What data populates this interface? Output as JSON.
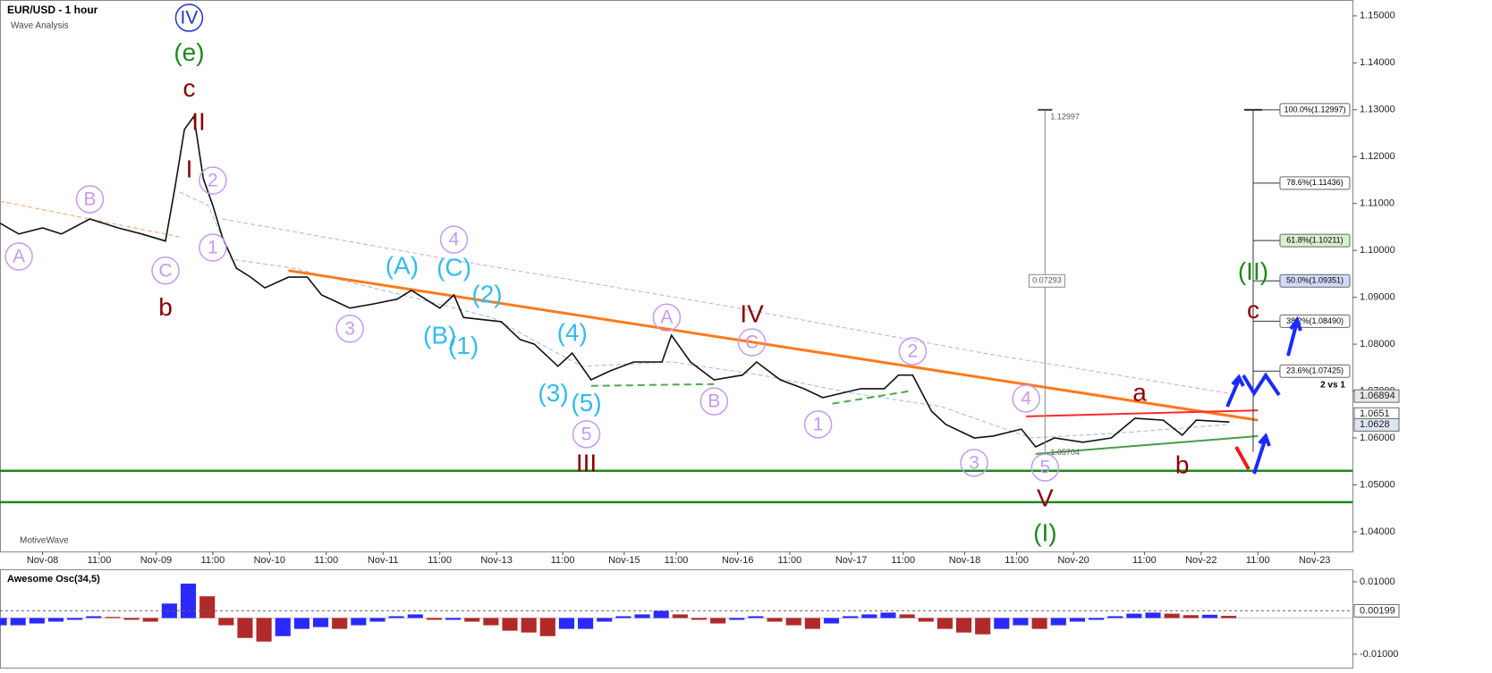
{
  "chart_data": {
    "type": "line",
    "title": "EUR/USD - 1 hour",
    "subtitle": "Wave Analysis",
    "watermark": "MotiveWave",
    "color": "#111111",
    "x": [
      0,
      4,
      9,
      13,
      19,
      25,
      30,
      35,
      37,
      39,
      41,
      43,
      45,
      47,
      50,
      53,
      56,
      61,
      65,
      68,
      74,
      79,
      84,
      87,
      93,
      96,
      98,
      106,
      110,
      113,
      118,
      121,
      125,
      129,
      134,
      140,
      142,
      146,
      151,
      157,
      160,
      165,
      170,
      174,
      182,
      187,
      190,
      193,
      197,
      200,
      206,
      210,
      216,
      219,
      223,
      229,
      235,
      240,
      246,
      250,
      253,
      260
    ],
    "values": [
      1.1058,
      1.1035,
      1.1048,
      1.1035,
      1.1067,
      1.1048,
      1.1035,
      1.102,
      1.1134,
      1.1258,
      1.1286,
      1.1153,
      1.1096,
      1.1029,
      1.0962,
      1.0943,
      1.092,
      1.0943,
      1.0943,
      1.0905,
      1.0877,
      1.0886,
      1.0896,
      1.0915,
      1.0877,
      1.0905,
      1.0857,
      1.0848,
      1.081,
      1.08,
      1.0753,
      1.0781,
      1.0724,
      1.0743,
      1.0762,
      1.0762,
      1.0819,
      1.0762,
      1.0724,
      1.0734,
      1.0762,
      1.0724,
      1.0705,
      1.0686,
      1.0705,
      1.0705,
      1.0734,
      1.0734,
      1.0657,
      1.0629,
      1.06,
      1.0604,
      1.0619,
      1.0581,
      1.06,
      1.0591,
      1.06,
      1.0642,
      1.0638,
      1.0606,
      1.0638,
      1.0634
    ],
    "xlim": [
      0,
      286
    ],
    "ylim": [
      1.0358,
      1.1534
    ],
    "yticks": [
      {
        "value": 1.04,
        "label": "1.04000"
      },
      {
        "value": 1.05,
        "label": "1.05000"
      },
      {
        "value": 1.06,
        "label": "1.06000"
      },
      {
        "value": 1.07,
        "label": "1.07000"
      },
      {
        "value": 1.08,
        "label": "1.08000"
      },
      {
        "value": 1.09,
        "label": "1.09000"
      },
      {
        "value": 1.1,
        "label": "1.10000"
      },
      {
        "value": 1.11,
        "label": "1.11000"
      },
      {
        "value": 1.12,
        "label": "1.12000"
      },
      {
        "value": 1.13,
        "label": "1.13000"
      },
      {
        "value": 1.14,
        "label": "1.14000"
      },
      {
        "value": 1.15,
        "label": "1.15000"
      }
    ],
    "xticks": [
      {
        "value": 9,
        "label": "Nov-08"
      },
      {
        "value": 21,
        "label": "11:00"
      },
      {
        "value": 33,
        "label": "Nov-09"
      },
      {
        "value": 45,
        "label": "11:00"
      },
      {
        "value": 57,
        "label": "Nov-10"
      },
      {
        "value": 69,
        "label": "11:00"
      },
      {
        "value": 81,
        "label": "Nov-11"
      },
      {
        "value": 93,
        "label": "11:00"
      },
      {
        "value": 105,
        "label": "Nov-13"
      },
      {
        "value": 119,
        "label": "11:00"
      },
      {
        "value": 132,
        "label": "Nov-15"
      },
      {
        "value": 143,
        "label": "11:00"
      },
      {
        "value": 156,
        "label": "Nov-16"
      },
      {
        "value": 167,
        "label": "11:00"
      },
      {
        "value": 180,
        "label": "Nov-17"
      },
      {
        "value": 191,
        "label": "11:00"
      },
      {
        "value": 204,
        "label": "Nov-18"
      },
      {
        "value": 215,
        "label": "11:00"
      },
      {
        "value": 227,
        "label": "Nov-20"
      },
      {
        "value": 242,
        "label": "11:00"
      },
      {
        "value": 254,
        "label": "Nov-22"
      },
      {
        "value": 266,
        "label": "11:00"
      },
      {
        "value": 278,
        "label": "Nov-23"
      }
    ],
    "averages": [
      {
        "color": "#f4a070",
        "x": [
          0,
          38
        ],
        "values": [
          1.1105,
          1.1029
        ]
      },
      {
        "color": "#d9a0e8",
        "x": [
          47,
          95,
          151,
          208,
          260
        ],
        "values": [
          1.1067,
          1.0981,
          1.0886,
          1.0781,
          1.0695
        ]
      },
      {
        "color": "#9ab8ee",
        "x": [
          38,
          44,
          49,
          62,
          85,
          104,
          123,
          142,
          161,
          180,
          199,
          218,
          236,
          260
        ],
        "values": [
          1.1124,
          1.1096,
          1.0981,
          1.0962,
          1.0905,
          1.0857,
          1.0753,
          1.0762,
          1.0734,
          1.0696,
          1.0667,
          1.06,
          1.061,
          1.0629
        ]
      }
    ],
    "trendlines": [
      {
        "color": "#ff7a1a",
        "x": [
          61,
          266
        ],
        "values": [
          1.0957,
          1.0638
        ]
      },
      {
        "color": "#ff2a2a",
        "x": [
          217,
          266
        ],
        "values": [
          1.0646,
          1.0659
        ]
      },
      {
        "color": "#4a9a4a",
        "x": [
          219,
          266
        ],
        "values": [
          1.0566,
          1.0604
        ]
      },
      {
        "color": "#4aaa4a",
        "x": [
          125,
          151
        ],
        "values": [
          1.0711,
          1.0715
        ]
      },
      {
        "color": "#4aaa4a",
        "x": [
          176,
          193
        ],
        "values": [
          1.0673,
          1.0701
        ]
      }
    ],
    "hlines": {
      "color": "#1a8a1a",
      "values": [
        1.053,
        1.0463
      ]
    },
    "price_labels": [
      {
        "value": 1.06894,
        "color": "#e8e8e8"
      },
      {
        "value": 1.0651,
        "color": "#ffffff"
      },
      {
        "value": 1.0628,
        "color": "#dde4f4"
      }
    ],
    "measure": {
      "x": 221,
      "top": 1.12997,
      "diff": 0.07293,
      "bottom": 1.05704
    },
    "fib": {
      "x": 265,
      "top": 1.12997,
      "bottom": 1.05704,
      "note": "2 vs 1",
      "levels": [
        {
          "value": 1.12997,
          "label": "100.0%(1.12997)",
          "color": "#ffffff"
        },
        {
          "value": 1.11436,
          "label": "78.6%(1.11436)",
          "color": "#ffffff"
        },
        {
          "value": 1.10211,
          "label": "61.8%(1.10211)",
          "color": "#d6f0cf"
        },
        {
          "value": 1.09351,
          "label": "50.0%(1.09351)",
          "color": "#d2daf8"
        },
        {
          "value": 1.0849,
          "label": "38.2%(1.08490)",
          "color": "#ffffff"
        },
        {
          "value": 1.07425,
          "label": "23.6%(1.07425)",
          "color": "#ffffff"
        }
      ]
    },
    "annotations": [
      {
        "text": "IV",
        "x": 40,
        "y": 1.1496,
        "color": "#2233cc",
        "circle": true
      },
      {
        "text": "(e)",
        "x": 40,
        "y": 1.142,
        "color": "#1a8a1a"
      },
      {
        "text": "c",
        "x": 40,
        "y": 1.1344,
        "color": "#8b0000"
      },
      {
        "text": "II",
        "x": 42,
        "y": 1.1273,
        "color": "#8b0000"
      },
      {
        "text": "I",
        "x": 40,
        "y": 1.1172,
        "color": "#8b0000"
      },
      {
        "text": "2",
        "x": 45,
        "y": 1.1149,
        "color": "#c69af0",
        "circle": true
      },
      {
        "text": "1",
        "x": 45,
        "y": 1.1006,
        "color": "#c69af0",
        "circle": true
      },
      {
        "text": "B",
        "x": 19,
        "y": 1.1109,
        "color": "#c69af0",
        "circle": true
      },
      {
        "text": "A",
        "x": 4,
        "y": 1.0987,
        "color": "#c69af0",
        "circle": true
      },
      {
        "text": "C",
        "x": 35,
        "y": 1.0957,
        "color": "#c69af0",
        "circle": true
      },
      {
        "text": "b",
        "x": 35,
        "y": 1.0877,
        "color": "#8b0000"
      },
      {
        "text": "4",
        "x": 96,
        "y": 1.1023,
        "color": "#c69af0",
        "circle": true
      },
      {
        "text": "(A)",
        "x": 85,
        "y": 1.0966,
        "color": "#33bbee"
      },
      {
        "text": "(C)",
        "x": 96,
        "y": 1.0962,
        "color": "#33bbee"
      },
      {
        "text": "(2)",
        "x": 103,
        "y": 1.0905,
        "color": "#33bbee"
      },
      {
        "text": "(B)",
        "x": 93,
        "y": 1.0817,
        "color": "#33bbee"
      },
      {
        "text": "(1)",
        "x": 98,
        "y": 1.0795,
        "color": "#33bbee"
      },
      {
        "text": "3",
        "x": 74,
        "y": 1.0833,
        "color": "#c69af0",
        "circle": true
      },
      {
        "text": "(4)",
        "x": 121,
        "y": 1.0823,
        "color": "#33bbee"
      },
      {
        "text": "(3)",
        "x": 117,
        "y": 1.0694,
        "color": "#33bbee"
      },
      {
        "text": "(5)",
        "x": 124,
        "y": 1.0673,
        "color": "#33bbee"
      },
      {
        "text": "5",
        "x": 124,
        "y": 1.0608,
        "color": "#c69af0",
        "circle": true
      },
      {
        "text": "III",
        "x": 124,
        "y": 1.0545,
        "color": "#8b0000"
      },
      {
        "text": "A",
        "x": 141,
        "y": 1.0857,
        "color": "#c69af0",
        "circle": true
      },
      {
        "text": "IV",
        "x": 159,
        "y": 1.0863,
        "color": "#8b0000"
      },
      {
        "text": "C",
        "x": 159,
        "y": 1.0804,
        "color": "#c69af0",
        "circle": true
      },
      {
        "text": "B",
        "x": 151,
        "y": 1.0678,
        "color": "#c69af0",
        "circle": true
      },
      {
        "text": "1",
        "x": 173,
        "y": 1.0629,
        "color": "#c69af0",
        "circle": true
      },
      {
        "text": "2",
        "x": 193,
        "y": 1.0785,
        "color": "#c69af0",
        "circle": true
      },
      {
        "text": "3",
        "x": 206,
        "y": 1.0547,
        "color": "#c69af0",
        "circle": true
      },
      {
        "text": "4",
        "x": 217,
        "y": 1.0684,
        "color": "#c69af0",
        "circle": true
      },
      {
        "text": "5",
        "x": 221,
        "y": 1.0537,
        "color": "#c69af0",
        "circle": true
      },
      {
        "text": "V",
        "x": 221,
        "y": 1.047,
        "color": "#8b0000"
      },
      {
        "text": "(I)",
        "x": 221,
        "y": 1.0396,
        "color": "#1a8a1a"
      },
      {
        "text": "a",
        "x": 241,
        "y": 1.0695,
        "color": "#8b0000"
      },
      {
        "text": "b",
        "x": 250,
        "y": 1.0541,
        "color": "#8b0000"
      },
      {
        "text": "(II)",
        "x": 265,
        "y": 1.0953,
        "color": "#1a8a1a"
      },
      {
        "text": "c",
        "x": 265,
        "y": 1.0871,
        "color": "#8b0000"
      }
    ],
    "oscillator": {
      "title": "Awesome Osc(34,5)",
      "up_color": "#2a2aff",
      "down_color": "#b02a2a",
      "x": [
        0,
        4,
        8,
        12,
        16,
        20,
        24,
        28,
        32,
        36,
        40,
        44,
        48,
        52,
        56,
        60,
        64,
        68,
        72,
        76,
        80,
        84,
        88,
        92,
        96,
        100,
        104,
        108,
        112,
        116,
        120,
        124,
        128,
        132,
        136,
        140,
        144,
        148,
        152,
        156,
        160,
        164,
        168,
        172,
        176,
        180,
        184,
        188,
        192,
        196,
        200,
        204,
        208,
        212,
        216,
        220,
        224,
        228,
        232,
        236,
        240,
        244,
        248,
        252,
        256,
        260
      ],
      "values": [
        -0.002,
        -0.002,
        -0.0015,
        -0.001,
        -0.0005,
        0.0005,
        0.0003,
        -0.0005,
        -0.001,
        0.004,
        0.0095,
        0.006,
        -0.002,
        -0.0055,
        -0.0065,
        -0.005,
        -0.003,
        -0.0025,
        -0.003,
        -0.002,
        -0.001,
        0.0005,
        0.001,
        -0.0005,
        -0.0005,
        -0.001,
        -0.002,
        -0.0035,
        -0.004,
        -0.005,
        -0.003,
        -0.003,
        -0.001,
        0.0005,
        0.001,
        0.002,
        0.001,
        -0.0005,
        -0.0015,
        -0.0005,
        0.0005,
        -0.001,
        -0.002,
        -0.003,
        -0.0015,
        0.0005,
        0.001,
        0.0015,
        0.001,
        -0.001,
        -0.003,
        -0.004,
        -0.0045,
        -0.003,
        -0.002,
        -0.003,
        -0.002,
        -0.001,
        -0.0005,
        0.0005,
        0.0012,
        0.0015,
        0.0012,
        0.0008,
        0.0009,
        0.0006
      ],
      "current": 0.00199,
      "ylim": [
        -0.0137,
        0.0132
      ],
      "yticks": [
        {
          "value": -0.01,
          "label": "-0.01000"
        },
        {
          "value": 0.01,
          "label": "0.01000"
        }
      ]
    }
  }
}
